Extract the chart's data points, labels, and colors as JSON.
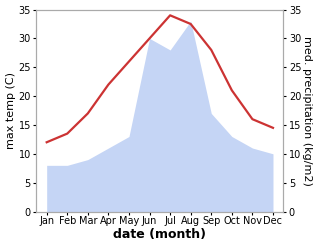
{
  "months": [
    "Jan",
    "Feb",
    "Mar",
    "Apr",
    "May",
    "Jun",
    "Jul",
    "Aug",
    "Sep",
    "Oct",
    "Nov",
    "Dec"
  ],
  "month_x": [
    1,
    2,
    3,
    4,
    5,
    6,
    7,
    8,
    9,
    10,
    11,
    12
  ],
  "temperature": [
    12,
    13.5,
    17,
    22,
    26,
    30,
    34,
    32.5,
    28,
    21,
    16,
    14.5
  ],
  "precipitation": [
    8,
    8,
    9,
    11,
    13,
    30,
    28,
    33,
    17,
    13,
    11,
    10
  ],
  "temp_color": "#cc3333",
  "precip_fill_color": "#c5d5f5",
  "ylim_left": [
    0,
    35
  ],
  "ylim_right": [
    0,
    35
  ],
  "xlabel": "date (month)",
  "ylabel_left": "max temp (C)",
  "ylabel_right": "med. precipitation (kg/m2)",
  "bg_color": "#ffffff",
  "tick_label_size": 7,
  "label_size": 8,
  "axis_label_fontsize": 8
}
